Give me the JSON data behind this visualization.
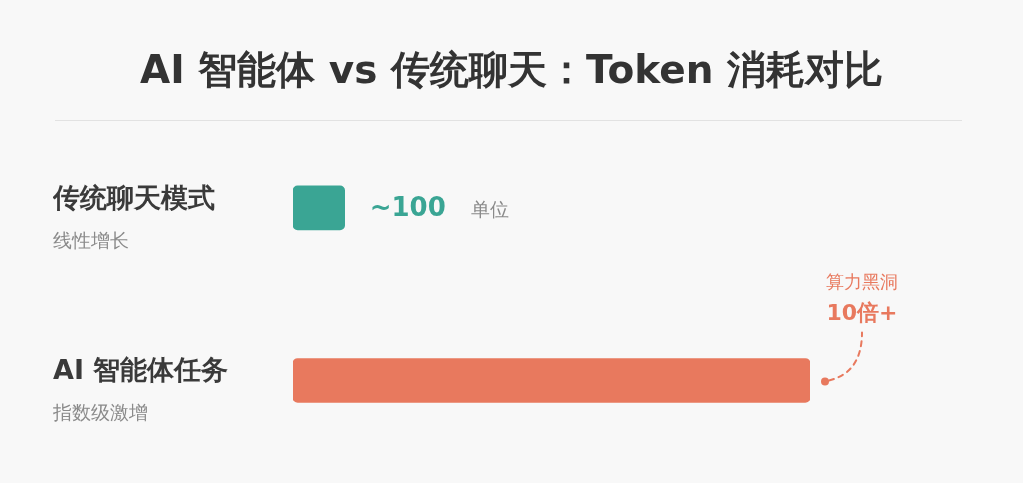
{
  "chart_data": {
    "type": "bar",
    "orientation": "horizontal",
    "title": "AI 智能体 vs 传统聊天：Token 消耗对比",
    "categories": [
      "传统聊天模式",
      "AI 智能体任务"
    ],
    "values": [
      100,
      1000
    ],
    "colors": [
      "#3aa594",
      "#e8795e"
    ],
    "value_labels": [
      "~100 单位",
      null
    ],
    "annotations": [
      "线性增长",
      "指数级激增",
      "算力黑洞",
      "10倍+"
    ]
  }
}
